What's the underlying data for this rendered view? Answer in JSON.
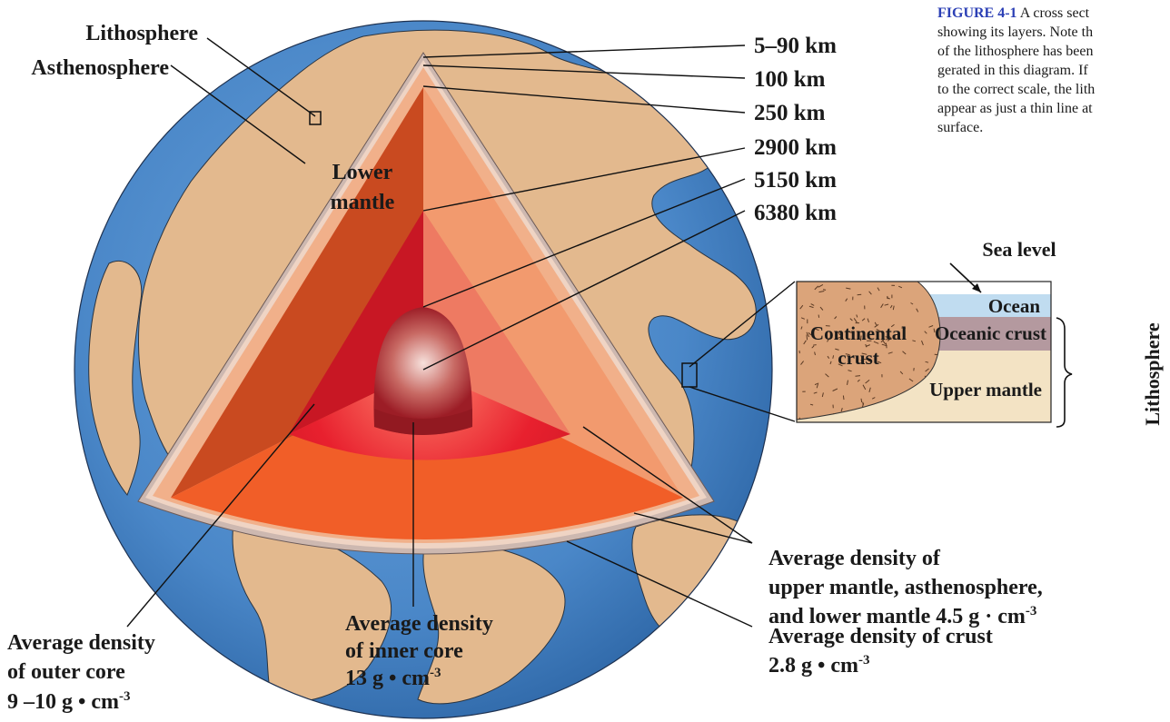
{
  "caption": {
    "figure_id": "FIGURE 4-1",
    "lines": [
      "A cross sect",
      "showing its layers. Note th",
      "of the lithosphere has been",
      "gerated in this diagram. If",
      "to the correct scale, the lith",
      "appear as just a thin line at",
      "surface."
    ]
  },
  "layers": {
    "lithosphere": "Lithosphere",
    "asthenosphere": "Asthenosphere",
    "lower_mantle_1": "Lower",
    "lower_mantle_2": "mantle"
  },
  "depths": [
    "5–90 km",
    "100 km",
    "250 km",
    "2900 km",
    "5150 km",
    "6380 km"
  ],
  "inset": {
    "sea_level": "Sea level",
    "ocean": "Ocean",
    "oceanic_crust": "Oceanic crust",
    "continental_crust_1": "Continental",
    "continental_crust_2": "crust",
    "upper_mantle": "Upper mantle",
    "lithosphere": "Lithosphere"
  },
  "densities": {
    "mantle_1": "Average density of",
    "mantle_2": "upper mantle, asthenosphere,",
    "mantle_3_text": "and lower mantle 4.5 g · cm",
    "mantle_3_exp": "-3",
    "inner_1": "Average density",
    "inner_2": "of inner core",
    "inner_3_text": "13 g • cm",
    "inner_3_exp": "-3",
    "outer_1": "Average density",
    "outer_2": "of outer core",
    "outer_3_text": "9 –10 g • cm",
    "outer_3_exp": "-3",
    "crust_1": "Average density of crust",
    "crust_2_text": "2.8 g • cm",
    "crust_2_exp": "-3"
  },
  "colors": {
    "ocean": "#4a87c8",
    "land": "#e3b98e",
    "lower_mantle": "#c94a20",
    "outer_core": "#c9202a",
    "inner_core": "#a81e28",
    "asthenosphere": "#e08a5a"
  }
}
